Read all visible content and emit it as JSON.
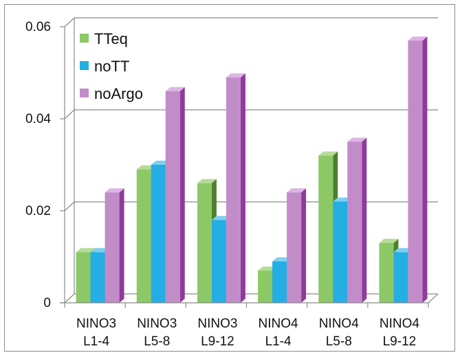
{
  "chart_data": {
    "type": "bar",
    "categories": [
      [
        "NINO3",
        "L1-4"
      ],
      [
        "NINO3",
        "L5-8"
      ],
      [
        "NINO3",
        "L9-12"
      ],
      [
        "NINO4",
        "L1-4"
      ],
      [
        "NINO4",
        "L5-8"
      ],
      [
        "NINO4",
        "L9-12"
      ]
    ],
    "series": [
      {
        "name": "TTeq",
        "values": [
          0.011,
          0.029,
          0.026,
          0.007,
          0.032,
          0.013
        ]
      },
      {
        "name": "noTT",
        "values": [
          0.011,
          0.03,
          0.018,
          0.009,
          0.022,
          0.011
        ]
      },
      {
        "name": "noArgo",
        "values": [
          0.024,
          0.046,
          0.049,
          0.024,
          0.035,
          0.057
        ]
      }
    ],
    "yticks": [
      "0",
      "0.02",
      "0.04",
      "0.06"
    ],
    "ylim": [
      0,
      0.06
    ],
    "grid": true,
    "legend": "top-left",
    "style": "3d-clustered-column"
  },
  "colors": {
    "TTeq": {
      "front": "#8cc966",
      "side": "#4e7f2d",
      "top": "#b5dc96"
    },
    "noTT": {
      "front": "#24aee3",
      "side": "#126f96",
      "top": "#7dd0ef"
    },
    "noArgo": {
      "front": "#c28cc9",
      "side": "#8e3c99",
      "top": "#dcb6e2"
    }
  }
}
